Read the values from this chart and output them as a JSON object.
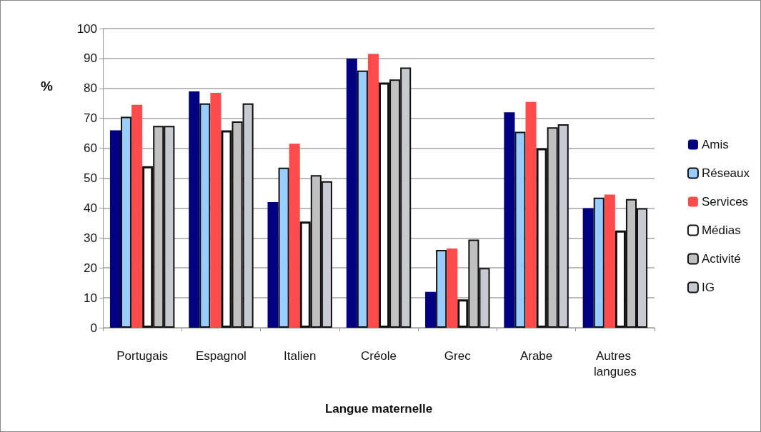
{
  "chart_data": {
    "type": "bar",
    "xlabel": "Langue maternelle",
    "ylabel": "%",
    "categories": [
      "Portugais",
      "Espagnol",
      "Italien",
      "Créole",
      "Grec",
      "Arabe",
      "Autres langues"
    ],
    "series": [
      {
        "name": "Amis",
        "color": "#000080",
        "values": [
          66,
          79,
          42,
          90,
          12,
          72,
          40
        ]
      },
      {
        "name": "Réseaux",
        "color": "#99ccff",
        "values": [
          70.5,
          75,
          53.5,
          86,
          26,
          65.5,
          43.5
        ]
      },
      {
        "name": "Services",
        "color": "#ff4b4b",
        "values": [
          74.5,
          78.5,
          61.5,
          91.5,
          26.5,
          75.5,
          44.5
        ]
      },
      {
        "name": "Médias",
        "color": "#ffffff",
        "values": [
          54,
          66,
          35.5,
          82,
          9.5,
          60,
          32.5
        ]
      },
      {
        "name": "Activité",
        "color": "#c0c0c0",
        "values": [
          67.5,
          69,
          51,
          83,
          29.5,
          67,
          43
        ]
      },
      {
        "name": "IG",
        "color": "#c8cad2",
        "values": [
          67.5,
          75,
          49,
          87,
          20,
          68,
          40
        ]
      }
    ],
    "ylim": [
      0,
      100
    ],
    "yticks": [
      0,
      10,
      20,
      30,
      40,
      50,
      60,
      70,
      80,
      90,
      100
    ],
    "grid": "y",
    "legend": "right"
  }
}
